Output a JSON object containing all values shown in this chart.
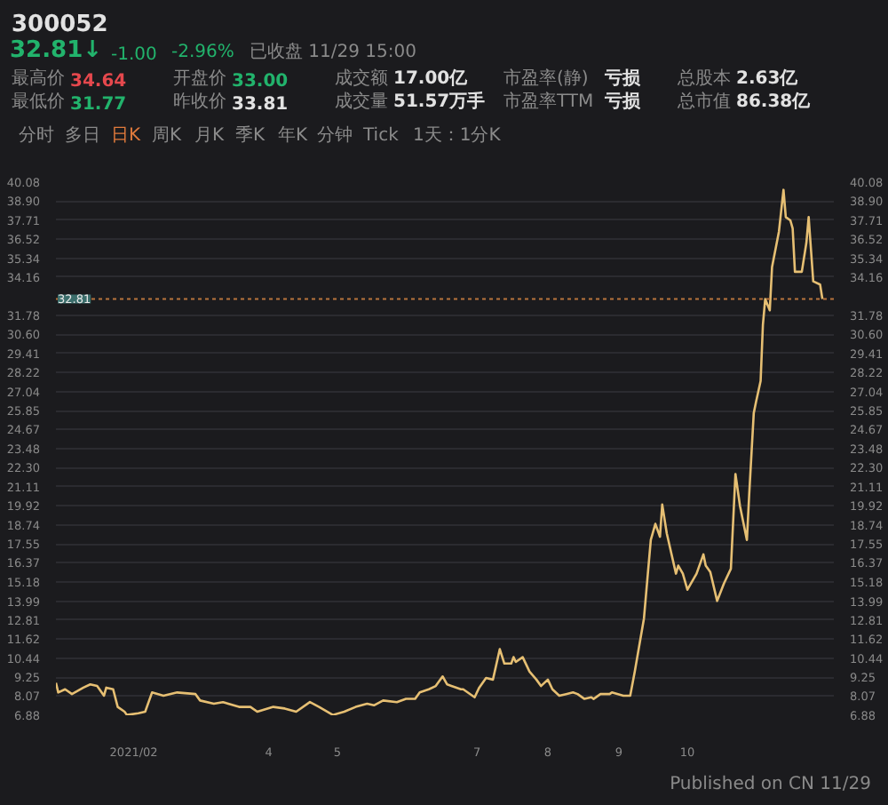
{
  "chart_data": {
    "type": "line",
    "title": "300052",
    "annotations": [
      "32.81↓",
      "-1.00",
      "-2.96%",
      "已收盘 11/29 15:00",
      "最高价",
      "34.64",
      "最低价",
      "31.77",
      "开盘价",
      "33.00",
      "昨收价",
      "33.81",
      "成交额",
      "17.00亿",
      "成交量",
      "51.57万手",
      "市盈率(静)",
      "亏损",
      "市盈率TTM",
      "亏损",
      "总股本",
      "2.63亿",
      "总市值",
      "86.38亿",
      "分时",
      "多日",
      "日K",
      "周K",
      "月K",
      "季K",
      "年K",
      "分钟",
      "Tick",
      "1天：1分K",
      "Published on CN 11/29"
    ],
    "x": [
      "2020-12-29",
      "2020-12-30",
      "2021-01-02",
      "2021-01-05",
      "2021-01-10",
      "2021-01-13",
      "2021-01-16",
      "2021-01-19",
      "2021-01-20",
      "2021-01-23",
      "2021-01-25",
      "2021-01-28",
      "2021-01-29",
      "2021-02-03",
      "2021-02-06",
      "2021-02-09",
      "2021-02-14",
      "2021-02-20",
      "2021-02-28",
      "2021-03-02",
      "2021-03-08",
      "2021-03-12",
      "2021-03-19",
      "2021-03-24",
      "2021-03-27",
      "2021-04-03",
      "2021-04-08",
      "2021-04-13",
      "2021-04-19",
      "2021-04-23",
      "2021-04-29",
      "2021-05-04",
      "2021-05-09",
      "2021-05-14",
      "2021-05-17",
      "2021-05-21",
      "2021-05-27",
      "2021-05-31",
      "2021-06-04",
      "2021-06-06",
      "2021-06-10",
      "2021-06-13",
      "2021-06-16",
      "2021-06-18",
      "2021-06-24",
      "2021-06-25",
      "2021-06-30",
      "2021-07-02",
      "2021-07-05",
      "2021-07-08",
      "2021-07-11",
      "2021-07-13",
      "2021-07-16",
      "2021-07-17",
      "2021-07-18",
      "2021-07-21",
      "2021-07-24",
      "2021-07-27",
      "2021-07-29",
      "2021-08-01",
      "2021-08-03",
      "2021-08-06",
      "2021-08-09",
      "2021-08-12",
      "2021-08-14",
      "2021-08-17",
      "2021-08-20",
      "2021-08-21",
      "2021-08-24",
      "2021-08-28",
      "2021-08-29",
      "2021-09-03",
      "2021-09-06",
      "2021-09-08",
      "2021-09-12",
      "2021-09-15",
      "2021-09-17",
      "2021-09-19",
      "2021-09-20",
      "2021-09-22",
      "2021-09-26",
      "2021-09-27",
      "2021-09-29",
      "2021-10-01",
      "2021-10-05",
      "2021-10-08",
      "2021-10-09",
      "2021-10-11",
      "2021-10-14",
      "2021-10-17",
      "2021-10-20",
      "2021-10-22",
      "2021-10-24",
      "2021-10-27",
      "2021-10-28",
      "2021-10-30",
      "2021-10-31",
      "2021-11-02",
      "2021-11-03",
      "2021-11-04",
      "2021-11-06",
      "2021-11-07",
      "2021-11-10",
      "2021-11-12",
      "2021-11-13",
      "2021-11-15",
      "2021-11-16",
      "2021-11-17",
      "2021-11-20",
      "2021-11-22",
      "2021-11-23",
      "2021-11-25",
      "2021-11-28",
      "2021-11-29"
    ],
    "values": [
      8.9,
      8.3,
      8.5,
      8.2,
      8.6,
      8.8,
      8.7,
      8.1,
      8.6,
      8.5,
      7.4,
      7.1,
      6.9,
      7.0,
      7.1,
      8.3,
      8.1,
      8.3,
      8.2,
      7.8,
      7.6,
      7.7,
      7.4,
      7.4,
      7.1,
      7.4,
      7.3,
      7.1,
      7.7,
      7.4,
      6.9,
      7.1,
      7.4,
      7.6,
      7.5,
      7.8,
      7.7,
      7.9,
      7.9,
      8.3,
      8.5,
      8.7,
      9.3,
      8.8,
      8.5,
      8.5,
      8.0,
      8.6,
      9.2,
      9.1,
      11.0,
      10.1,
      10.1,
      10.5,
      10.2,
      10.5,
      9.6,
      9.1,
      8.7,
      9.1,
      8.5,
      8.1,
      8.2,
      8.3,
      8.2,
      7.9,
      8.0,
      7.9,
      8.2,
      8.2,
      8.3,
      8.1,
      8.1,
      9.6,
      12.9,
      17.8,
      18.8,
      18.0,
      20.0,
      18.2,
      15.7,
      16.2,
      15.7,
      14.7,
      15.7,
      16.9,
      16.2,
      15.8,
      14.0,
      15.1,
      16.0,
      21.9,
      19.9,
      17.8,
      20.6,
      25.7,
      26.4,
      27.7,
      31.2,
      32.8,
      32.1,
      34.8,
      37.0,
      39.6,
      37.9,
      37.7,
      37.2,
      34.5,
      34.5,
      36.3,
      37.9,
      33.9,
      33.7,
      32.8
    ],
    "color": "#e6bf73",
    "xlim": [
      "2020-12-29",
      "2021-12-04"
    ],
    "xticks": [
      {
        "value": "2021-02-01",
        "label": "2021/02"
      },
      {
        "value": "2021-04-01",
        "label": "4"
      },
      {
        "value": "2021-05-01",
        "label": "5"
      },
      {
        "value": "2021-07-01",
        "label": "7"
      },
      {
        "value": "2021-08-01",
        "label": "8"
      },
      {
        "value": "2021-09-01",
        "label": "9"
      },
      {
        "value": "2021-10-01",
        "label": "10"
      }
    ],
    "ylim": [
      6.88,
      40.08
    ],
    "yticks": [
      6.88,
      8.07,
      9.25,
      10.44,
      11.62,
      12.81,
      13.99,
      15.18,
      16.37,
      17.55,
      18.74,
      19.92,
      21.11,
      {
        "value": 22.3,
        "label": "22.30"
      },
      23.48,
      24.67,
      25.85,
      27.04,
      28.22,
      29.41,
      {
        "value": 30.6,
        "label": "30.60"
      },
      31.78,
      34.16,
      35.34,
      36.52,
      37.71,
      {
        "value": 38.9,
        "label": "38.90"
      },
      40.08
    ],
    "y2lim": [
      6.88,
      40.08
    ],
    "y2ticks": [
      6.88,
      8.07,
      9.25,
      10.44,
      11.62,
      12.81,
      13.99,
      15.18,
      16.37,
      17.55,
      18.74,
      19.92,
      21.11,
      {
        "value": 22.3,
        "label": "22.30"
      },
      23.48,
      24.67,
      25.85,
      27.04,
      28.22,
      29.41,
      {
        "value": 30.6,
        "label": "30.60"
      },
      31.78,
      34.16,
      35.34,
      36.52,
      37.71,
      {
        "value": 38.9,
        "label": "38.90"
      },
      40.08
    ],
    "grid": "y",
    "ref_lines": [
      {
        "axis": "y",
        "value": 32.81,
        "label": "32.81",
        "color": "#b8743c",
        "line_style": "dotted"
      }
    ]
  }
}
